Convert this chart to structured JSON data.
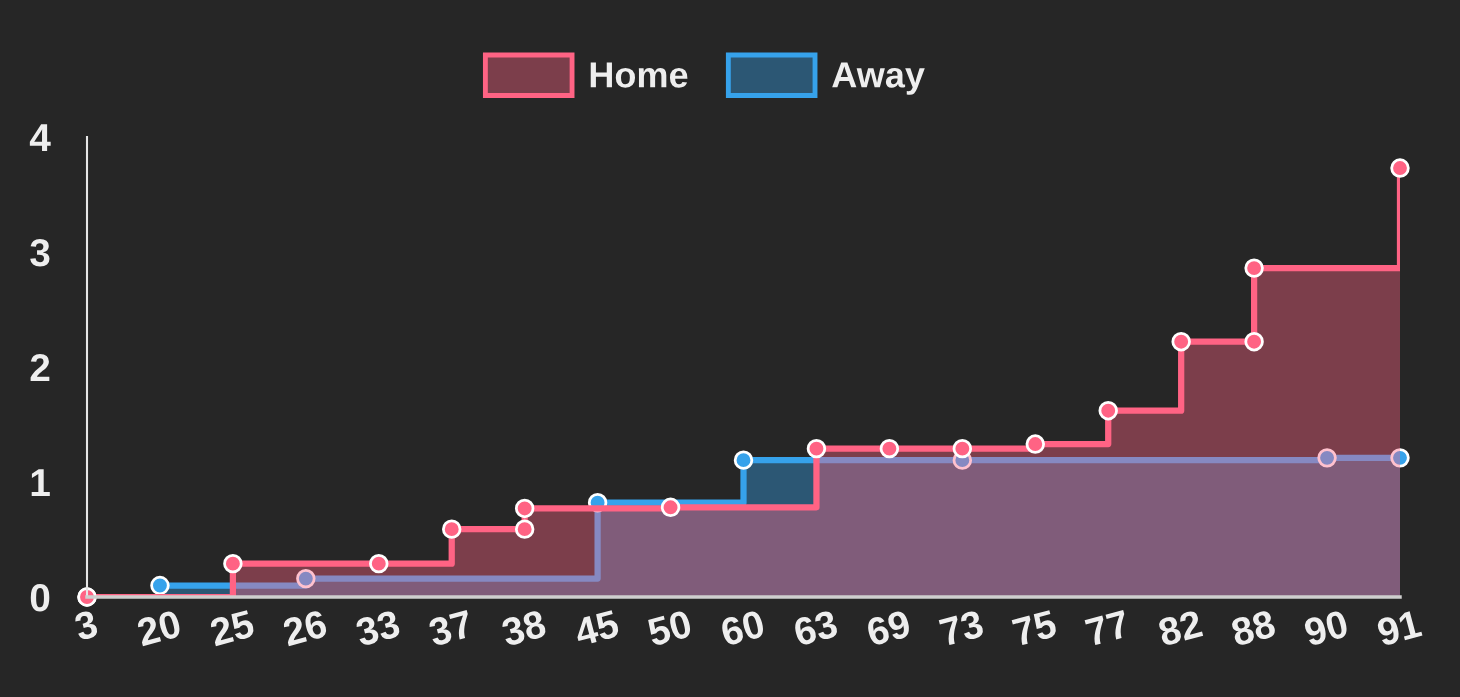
{
  "chart_data": {
    "type": "step",
    "categories": [
      "3",
      "20",
      "25",
      "26",
      "33",
      "37",
      "38",
      "45",
      "50",
      "60",
      "63",
      "69",
      "73",
      "75",
      "77",
      "82",
      "88",
      "90",
      "91"
    ],
    "ylim": [
      0,
      4
    ],
    "yticks": [
      0,
      1,
      2,
      3,
      4
    ],
    "grid": false,
    "legend": "top",
    "marker": "circle",
    "line_style": "solid",
    "series": [
      {
        "name": "Home",
        "color": "#ff6384",
        "x": [
          "3",
          "25",
          "33",
          "37",
          "38",
          "38",
          "50",
          "63",
          "69",
          "73",
          "75",
          "77",
          "82",
          "88",
          "88",
          "91"
        ],
        "values": [
          0,
          0.29,
          0.29,
          0.59,
          0.59,
          0.77,
          0.78,
          1.29,
          1.29,
          1.29,
          1.33,
          1.62,
          2.22,
          2.22,
          2.86,
          3.73
        ]
      },
      {
        "name": "Away",
        "color": "#36a2eb",
        "x": [
          "3",
          "20",
          "26",
          "45",
          "60",
          "73",
          "90",
          "91"
        ],
        "values": [
          0,
          0.1,
          0.16,
          0.82,
          1.19,
          1.19,
          1.21,
          1.21
        ]
      }
    ]
  }
}
